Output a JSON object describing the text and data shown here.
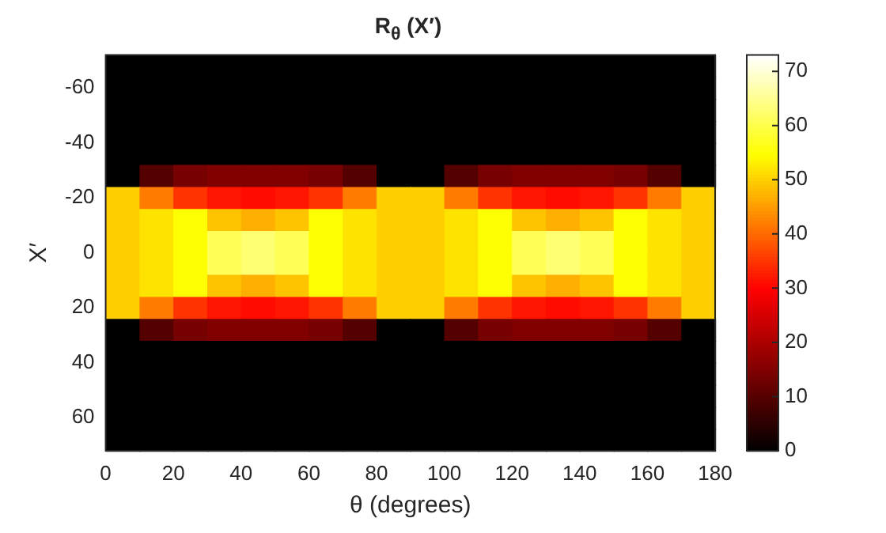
{
  "chart_data": {
    "type": "heatmap",
    "title": "R$_{θ}$ (X′)",
    "xlabel": "θ (degrees)",
    "ylabel": "X′",
    "x": [
      5,
      15,
      25,
      35,
      45,
      55,
      65,
      75,
      85,
      95,
      105,
      115,
      125,
      135,
      145,
      155,
      165,
      175
    ],
    "y": [
      -68,
      -60,
      -52,
      -44,
      -36,
      -28,
      -20,
      -12,
      -4,
      4,
      12,
      20,
      28,
      36,
      44,
      52,
      60,
      68
    ],
    "xlim": [
      0,
      180
    ],
    "xticks": [
      0,
      20,
      40,
      60,
      80,
      100,
      120,
      140,
      160,
      180
    ],
    "ylim": [
      72,
      -72
    ],
    "yticks": [
      -60,
      -40,
      -20,
      0,
      20,
      40,
      60
    ],
    "clim": [
      0,
      73
    ],
    "cticks": [
      0,
      10,
      20,
      30,
      40,
      50,
      60,
      70
    ],
    "cells": [
      [
        0,
        0,
        0,
        0,
        0,
        0,
        0,
        0,
        0,
        0,
        0,
        0,
        0,
        0,
        0,
        0,
        0,
        0
      ],
      [
        0,
        0,
        0,
        0,
        0,
        0,
        0,
        0,
        0,
        0,
        0,
        0,
        0,
        0,
        0,
        0,
        0,
        0
      ],
      [
        0,
        0,
        0,
        0,
        0,
        0,
        0,
        0,
        0,
        0,
        0,
        0,
        0,
        0,
        0,
        0,
        0,
        0
      ],
      [
        0,
        0,
        0,
        0,
        0,
        0,
        0,
        0,
        0,
        0,
        0,
        0,
        0,
        0,
        0,
        0,
        0,
        0
      ],
      [
        0,
        0,
        0,
        0,
        0,
        0,
        0,
        0,
        0,
        0,
        0,
        0,
        0,
        0,
        0,
        0,
        0,
        0
      ],
      [
        0,
        10,
        14,
        15,
        15,
        15,
        14,
        10,
        0,
        0,
        10,
        14,
        15,
        15,
        15,
        14,
        10,
        0
      ],
      [
        50,
        42,
        35,
        32,
        31,
        32,
        35,
        42,
        50,
        50,
        42,
        35,
        32,
        31,
        32,
        35,
        42,
        50
      ],
      [
        50,
        52,
        55,
        49,
        47,
        49,
        55,
        52,
        50,
        50,
        52,
        55,
        49,
        47,
        49,
        55,
        52,
        50
      ],
      [
        50,
        52,
        55,
        61,
        63,
        61,
        55,
        52,
        50,
        50,
        52,
        55,
        61,
        63,
        61,
        55,
        52,
        50
      ],
      [
        50,
        52,
        55,
        61,
        63,
        61,
        55,
        52,
        50,
        50,
        52,
        55,
        61,
        63,
        61,
        55,
        52,
        50
      ],
      [
        50,
        52,
        55,
        49,
        47,
        49,
        55,
        52,
        50,
        50,
        52,
        55,
        49,
        47,
        49,
        55,
        52,
        50
      ],
      [
        50,
        42,
        35,
        32,
        31,
        32,
        35,
        42,
        50,
        50,
        42,
        35,
        32,
        31,
        32,
        35,
        42,
        50
      ],
      [
        0,
        10,
        14,
        15,
        15,
        15,
        14,
        10,
        0,
        0,
        10,
        14,
        15,
        15,
        15,
        14,
        10,
        0
      ],
      [
        0,
        0,
        0,
        0,
        0,
        0,
        0,
        0,
        0,
        0,
        0,
        0,
        0,
        0,
        0,
        0,
        0,
        0
      ],
      [
        0,
        0,
        0,
        0,
        0,
        0,
        0,
        0,
        0,
        0,
        0,
        0,
        0,
        0,
        0,
        0,
        0,
        0
      ],
      [
        0,
        0,
        0,
        0,
        0,
        0,
        0,
        0,
        0,
        0,
        0,
        0,
        0,
        0,
        0,
        0,
        0,
        0
      ],
      [
        0,
        0,
        0,
        0,
        0,
        0,
        0,
        0,
        0,
        0,
        0,
        0,
        0,
        0,
        0,
        0,
        0,
        0
      ],
      [
        0,
        0,
        0,
        0,
        0,
        0,
        0,
        0,
        0,
        0,
        0,
        0,
        0,
        0,
        0,
        0,
        0,
        0
      ]
    ]
  }
}
